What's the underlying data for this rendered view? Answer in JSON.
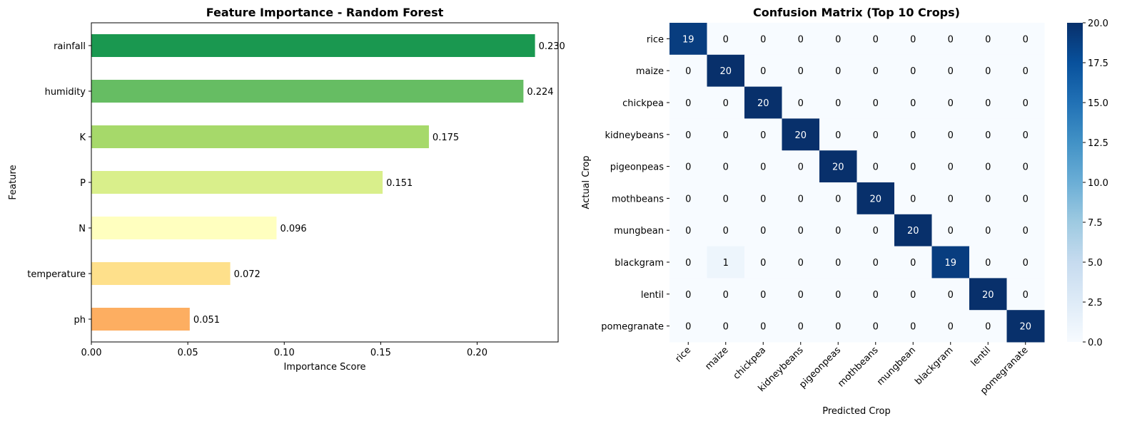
{
  "chart_data": [
    {
      "type": "bar",
      "orientation": "horizontal",
      "title": "Feature Importance - Random Forest",
      "xlabel": "Importance Score",
      "ylabel": "Feature",
      "xlim": [
        0,
        0.242
      ],
      "xticks": [
        "0.00",
        "0.05",
        "0.10",
        "0.15",
        "0.20"
      ],
      "xtick_values": [
        0,
        0.05,
        0.1,
        0.15,
        0.2
      ],
      "categories": [
        "rainfall",
        "humidity",
        "K",
        "P",
        "N",
        "temperature",
        "ph"
      ],
      "values": [
        0.23,
        0.224,
        0.175,
        0.151,
        0.096,
        0.072,
        0.051
      ],
      "value_labels": [
        "0.230",
        "0.224",
        "0.175",
        "0.151",
        "0.096",
        "0.072",
        "0.051"
      ],
      "colors": [
        "#1a9850",
        "#66bd63",
        "#a6d96a",
        "#d9ef8b",
        "#ffffbf",
        "#fee08b",
        "#fdae61"
      ],
      "grid": false
    },
    {
      "type": "heatmap",
      "title": "Confusion Matrix (Top 10 Crops)",
      "xlabel": "Predicted Crop",
      "ylabel": "Actual Crop",
      "labels": [
        "rice",
        "maize",
        "chickpea",
        "kidneybeans",
        "pigeonpeas",
        "mothbeans",
        "mungbean",
        "blackgram",
        "lentil",
        "pomegranate"
      ],
      "matrix": [
        [
          19,
          0,
          0,
          0,
          0,
          0,
          0,
          0,
          0,
          0
        ],
        [
          0,
          20,
          0,
          0,
          0,
          0,
          0,
          0,
          0,
          0
        ],
        [
          0,
          0,
          20,
          0,
          0,
          0,
          0,
          0,
          0,
          0
        ],
        [
          0,
          0,
          0,
          20,
          0,
          0,
          0,
          0,
          0,
          0
        ],
        [
          0,
          0,
          0,
          0,
          20,
          0,
          0,
          0,
          0,
          0
        ],
        [
          0,
          0,
          0,
          0,
          0,
          20,
          0,
          0,
          0,
          0
        ],
        [
          0,
          0,
          0,
          0,
          0,
          0,
          20,
          0,
          0,
          0
        ],
        [
          0,
          1,
          0,
          0,
          0,
          0,
          0,
          19,
          0,
          0
        ],
        [
          0,
          0,
          0,
          0,
          0,
          0,
          0,
          0,
          20,
          0
        ],
        [
          0,
          0,
          0,
          0,
          0,
          0,
          0,
          0,
          0,
          20
        ]
      ],
      "colormap": "Blues",
      "vmin": 0,
      "vmax": 20,
      "colorbar_ticks": [
        "0.0",
        "2.5",
        "5.0",
        "7.5",
        "10.0",
        "12.5",
        "15.0",
        "17.5",
        "20.0"
      ],
      "colorbar_tick_values": [
        0,
        2.5,
        5,
        7.5,
        10,
        12.5,
        15,
        17.5,
        20
      ]
    }
  ]
}
